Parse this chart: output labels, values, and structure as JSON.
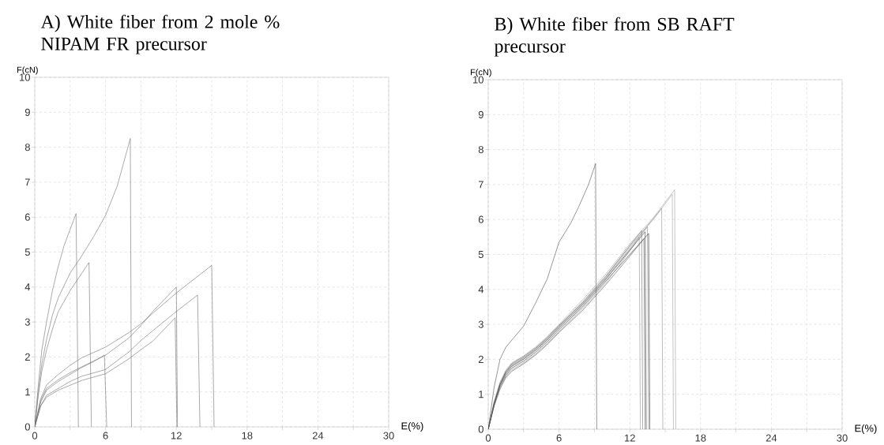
{
  "chart_data": [
    {
      "type": "line",
      "title": "A) White fiber from 2 mole % NIPAM FR precursor",
      "xlabel": "E(%)",
      "ylabel": "F(cN)",
      "xlim": [
        0,
        30
      ],
      "ylim": [
        0,
        10
      ],
      "xticks": [
        0,
        {
          "value": 3,
          "label": null
        },
        6,
        {
          "value": 9,
          "label": null
        },
        12,
        {
          "value": 15,
          "label": null
        },
        18,
        {
          "value": 21,
          "label": null
        },
        24,
        {
          "value": 27,
          "label": null
        },
        30
      ],
      "yticks": [
        0,
        1,
        2,
        3,
        4,
        5,
        6,
        7,
        8,
        9,
        10
      ],
      "grid": true,
      "series": [
        {
          "color": "#707070",
          "x": [
            0,
            0.3,
            0.6,
            1,
            1.5,
            2,
            2.5,
            3,
            3.5,
            3.7
          ],
          "values": [
            0,
            1.2,
            2.2,
            3.0,
            3.9,
            4.6,
            5.2,
            5.65,
            6.1,
            0
          ]
        },
        {
          "color": "#707070",
          "x": [
            0,
            0.3,
            0.6,
            1,
            1.5,
            2,
            3,
            4,
            5,
            6,
            7,
            8.1,
            8.2
          ],
          "values": [
            0,
            1.0,
            1.8,
            2.5,
            3.2,
            3.7,
            4.4,
            4.9,
            5.45,
            6.05,
            6.9,
            8.25,
            0
          ]
        },
        {
          "color": "#707070",
          "x": [
            0,
            0.3,
            0.6,
            1,
            1.5,
            2,
            3,
            4,
            4.6,
            4.8
          ],
          "values": [
            0,
            0.9,
            1.6,
            2.2,
            2.8,
            3.3,
            3.9,
            4.4,
            4.7,
            0
          ]
        },
        {
          "color": "#707070",
          "x": [
            0,
            0.5,
            1,
            2,
            3,
            4,
            6,
            8,
            9,
            10,
            12,
            15,
            15.2
          ],
          "values": [
            0,
            0.8,
            1.2,
            1.5,
            1.76,
            1.98,
            2.28,
            2.7,
            2.95,
            3.25,
            3.83,
            4.62,
            0
          ]
        },
        {
          "color": "#707070",
          "x": [
            0,
            0.5,
            1,
            2,
            3,
            4,
            6,
            8,
            9,
            10,
            12,
            12.1
          ],
          "values": [
            0,
            0.75,
            1.1,
            1.35,
            1.55,
            1.72,
            2.05,
            2.55,
            2.9,
            3.3,
            4.0,
            0
          ]
        },
        {
          "color": "#707070",
          "x": [
            0,
            0.5,
            1,
            2,
            3,
            4,
            5,
            5.9,
            6.1
          ],
          "values": [
            0,
            0.7,
            1.05,
            1.3,
            1.5,
            1.7,
            1.87,
            2.05,
            0
          ]
        },
        {
          "color": "#707070",
          "x": [
            0,
            0.5,
            1,
            2,
            3,
            4,
            6,
            8,
            9,
            10,
            12,
            13.8,
            14
          ],
          "values": [
            0,
            0.6,
            0.9,
            1.1,
            1.3,
            1.45,
            1.64,
            2.15,
            2.47,
            2.75,
            3.3,
            3.77,
            0
          ]
        },
        {
          "color": "#707070",
          "x": [
            0,
            0.5,
            1,
            2,
            3,
            4,
            6,
            8,
            9,
            10,
            11.9,
            12.05
          ],
          "values": [
            0,
            0.6,
            0.85,
            1.05,
            1.19,
            1.33,
            1.52,
            1.95,
            2.21,
            2.45,
            3.12,
            0
          ]
        }
      ]
    },
    {
      "type": "line",
      "title": "B) White fiber from SB RAFT precursor",
      "xlabel": "E(%)",
      "ylabel": "F(cN)",
      "xlim": [
        0,
        30
      ],
      "ylim": [
        0,
        10
      ],
      "xticks": [
        0,
        {
          "value": 3,
          "label": null
        },
        6,
        {
          "value": 9,
          "label": null
        },
        12,
        {
          "value": 15,
          "label": null
        },
        18,
        {
          "value": 21,
          "label": null
        },
        24,
        {
          "value": 27,
          "label": null
        },
        30
      ],
      "yticks": [
        0,
        1,
        2,
        3,
        4,
        5,
        6,
        7,
        8,
        9,
        10
      ],
      "grid": true,
      "series": [
        {
          "color": "#505050",
          "x": [
            0,
            0.5,
            1,
            1.5,
            2,
            3,
            4,
            5,
            6,
            7,
            7.65,
            8.5,
            9.1,
            9.2
          ],
          "values": [
            0,
            1.2,
            2.0,
            2.35,
            2.55,
            2.95,
            3.6,
            4.3,
            5.35,
            5.9,
            6.35,
            7.0,
            7.6,
            0
          ]
        },
        {
          "color": "#a0a0a0",
          "x": [
            0,
            0.5,
            1,
            1.5,
            2,
            3,
            4,
            5,
            6,
            8,
            10,
            12,
            14,
            15.8,
            15.9
          ],
          "values": [
            0,
            0.8,
            1.35,
            1.7,
            1.9,
            2.1,
            2.35,
            2.65,
            3.0,
            3.7,
            4.45,
            5.3,
            6.05,
            6.85,
            0
          ]
        },
        {
          "color": "#a0a0a0",
          "x": [
            0,
            0.5,
            1,
            1.5,
            2,
            3,
            4,
            5,
            6,
            8,
            10,
            12,
            14,
            15.6,
            15.7
          ],
          "values": [
            0,
            0.75,
            1.3,
            1.65,
            1.85,
            2.05,
            2.3,
            2.6,
            2.95,
            3.65,
            4.4,
            5.25,
            6.0,
            6.72,
            0
          ]
        },
        {
          "color": "#909090",
          "x": [
            0,
            0.5,
            1,
            1.5,
            2,
            3,
            4,
            5,
            6,
            8,
            10,
            12,
            14.7,
            14.8
          ],
          "values": [
            0,
            0.75,
            1.3,
            1.65,
            1.85,
            2.05,
            2.3,
            2.6,
            2.95,
            3.6,
            4.35,
            5.2,
            6.32,
            0
          ]
        },
        {
          "color": "#808080",
          "x": [
            0,
            0.5,
            1,
            1.5,
            2,
            3,
            4,
            5,
            6,
            8,
            10,
            12,
            13.5,
            13.6
          ],
          "values": [
            0,
            0.72,
            1.28,
            1.62,
            1.82,
            2.02,
            2.27,
            2.57,
            2.92,
            3.58,
            4.32,
            5.15,
            5.79,
            0
          ]
        },
        {
          "color": "#303030",
          "x": [
            0,
            0.5,
            1,
            1.5,
            2,
            3,
            4,
            5,
            6,
            8,
            10,
            12,
            13.6,
            13.7
          ],
          "values": [
            0,
            0.7,
            1.22,
            1.55,
            1.75,
            1.95,
            2.2,
            2.5,
            2.85,
            3.5,
            4.25,
            5.0,
            5.6,
            0
          ]
        },
        {
          "color": "#707070",
          "x": [
            0,
            0.5,
            1,
            1.5,
            2,
            3,
            4,
            5,
            6,
            8,
            10,
            12,
            13.0,
            13.1
          ],
          "values": [
            0,
            0.74,
            1.3,
            1.66,
            1.88,
            2.08,
            2.32,
            2.62,
            2.97,
            3.62,
            4.38,
            5.25,
            5.68,
            0
          ]
        },
        {
          "color": "#909090",
          "x": [
            0,
            0.5,
            1,
            1.5,
            2,
            3,
            4,
            5,
            6,
            8,
            10,
            12,
            12.8,
            12.9
          ],
          "values": [
            0,
            0.68,
            1.2,
            1.52,
            1.7,
            1.9,
            2.15,
            2.45,
            2.8,
            3.45,
            4.2,
            5.1,
            5.5,
            0
          ]
        },
        {
          "color": "#505050",
          "x": [
            0,
            0.5,
            1,
            1.5,
            2,
            3,
            4,
            5,
            6,
            8,
            10,
            12,
            13.2,
            13.3
          ],
          "values": [
            0,
            0.66,
            1.15,
            1.48,
            1.66,
            1.87,
            2.12,
            2.42,
            2.77,
            3.4,
            4.15,
            4.95,
            5.45,
            0
          ]
        },
        {
          "color": "#404040",
          "x": [
            0,
            0.5,
            1,
            1.5,
            2,
            3,
            4,
            5,
            6,
            8,
            10,
            12,
            13.3,
            13.4
          ],
          "values": [
            0,
            0.73,
            1.27,
            1.6,
            1.8,
            2.0,
            2.25,
            2.55,
            2.9,
            3.55,
            4.3,
            5.12,
            5.65,
            0
          ]
        }
      ]
    }
  ]
}
